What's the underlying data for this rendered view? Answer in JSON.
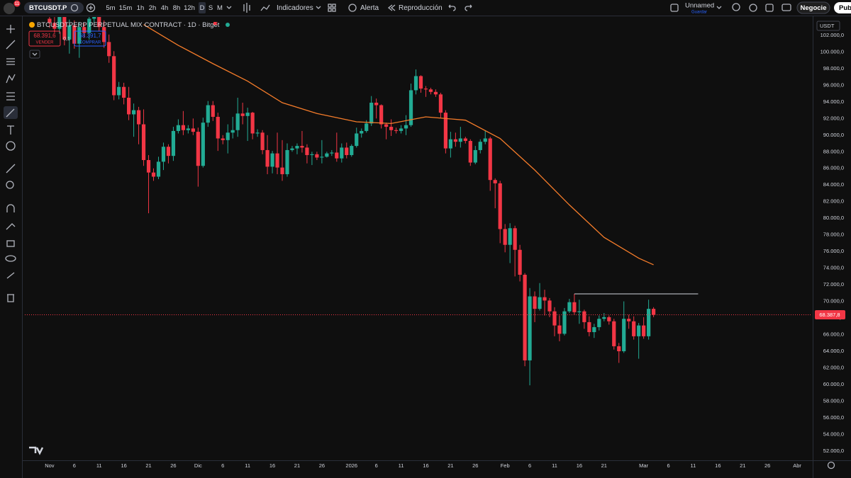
{
  "top_bar": {
    "badge": "11",
    "symbol": "BTCUSDT.P",
    "intervals": [
      "5m",
      "15m",
      "1h",
      "2h",
      "4h",
      "8h",
      "12h",
      "D",
      "S",
      "M"
    ],
    "indicators": "Indicadores",
    "alert": "Alerta",
    "replay": "Reproducción",
    "layout_name": "Unnamed",
    "save": "Guardar",
    "trade": "Negocie",
    "publish": "Publ"
  },
  "legend": {
    "sell_price": "68.391,6",
    "sell": "VENDER",
    "spread": "0,1",
    "buy_price": "68.391,7",
    "buy": "COMPRAR"
  },
  "chart_data": {
    "type": "candlestick",
    "title": "BTCUSDTPERP PERPETUAL MIX CONTRACT · 1D · Bitget",
    "currency": "USDT",
    "up_color": "#22ab94",
    "down_color": "#f23645",
    "xlim": [
      "2025-10-27",
      "2026-04-04"
    ],
    "xticks": [
      {
        "value": "2025-11-01",
        "label": "Nov"
      },
      {
        "value": "2025-11-06",
        "label": "6"
      },
      {
        "value": "2025-11-11",
        "label": "11"
      },
      {
        "value": "2025-11-16",
        "label": "16"
      },
      {
        "value": "2025-11-21",
        "label": "21"
      },
      {
        "value": "2025-11-26",
        "label": "26"
      },
      {
        "value": "2025-12-01",
        "label": "Dic"
      },
      {
        "value": "2025-12-06",
        "label": "6"
      },
      {
        "value": "2025-12-11",
        "label": "11"
      },
      {
        "value": "2025-12-16",
        "label": "16"
      },
      {
        "value": "2025-12-21",
        "label": "21"
      },
      {
        "value": "2025-12-26",
        "label": "26"
      },
      {
        "value": "2026-01-01",
        "label": "2026"
      },
      {
        "value": "2026-01-06",
        "label": "6"
      },
      {
        "value": "2026-01-11",
        "label": "11"
      },
      {
        "value": "2026-01-16",
        "label": "16"
      },
      {
        "value": "2026-01-21",
        "label": "21"
      },
      {
        "value": "2026-01-26",
        "label": "26"
      },
      {
        "value": "2026-02-01",
        "label": "Feb"
      },
      {
        "value": "2026-02-06",
        "label": "6"
      },
      {
        "value": "2026-02-11",
        "label": "11"
      },
      {
        "value": "2026-02-16",
        "label": "16"
      },
      {
        "value": "2026-02-21",
        "label": "21"
      },
      {
        "value": "2026-03-01",
        "label": "Mar"
      },
      {
        "value": "2026-03-06",
        "label": "6"
      },
      {
        "value": "2026-03-11",
        "label": "11"
      },
      {
        "value": "2026-03-16",
        "label": "16"
      },
      {
        "value": "2026-03-21",
        "label": "21"
      },
      {
        "value": "2026-03-26",
        "label": "26"
      },
      {
        "value": "2026-04-01",
        "label": "Abr"
      }
    ],
    "ylim": [
      50880,
      103700
    ],
    "yticks": [
      {
        "value": 52000,
        "label": "52.000,0"
      },
      {
        "value": 54000,
        "label": "54.000,0"
      },
      {
        "value": 56000,
        "label": "56.000,0"
      },
      {
        "value": 58000,
        "label": "58.000,0"
      },
      {
        "value": 60000,
        "label": "60.000,0"
      },
      {
        "value": 62000,
        "label": "62.000,0"
      },
      {
        "value": 64000,
        "label": "64.000,0"
      },
      {
        "value": 66000,
        "label": "66.000,0"
      },
      {
        "value": 68000,
        "label": "68.000,0"
      },
      {
        "value": 70000,
        "label": "70.000,0"
      },
      {
        "value": 72000,
        "label": "72.000,0"
      },
      {
        "value": 74000,
        "label": "74.000,0"
      },
      {
        "value": 76000,
        "label": "76.000,0"
      },
      {
        "value": 78000,
        "label": "78.000,0"
      },
      {
        "value": 80000,
        "label": "80.000,0"
      },
      {
        "value": 82000,
        "label": "82.000,0"
      },
      {
        "value": 84000,
        "label": "84.000,0"
      },
      {
        "value": 86000,
        "label": "86.000,0"
      },
      {
        "value": 88000,
        "label": "88.000,0"
      },
      {
        "value": 90000,
        "label": "90.000,0"
      },
      {
        "value": 92000,
        "label": "92.000,0"
      },
      {
        "value": 94000,
        "label": "94.000,0"
      },
      {
        "value": 96000,
        "label": "96.000,0"
      },
      {
        "value": 98000,
        "label": "98.000,0"
      },
      {
        "value": 100000,
        "label": "100.000,0"
      },
      {
        "value": 102000,
        "label": "102.000,0"
      }
    ],
    "grid": false,
    "x": [
      "2025-11-01",
      "2025-11-02",
      "2025-11-03",
      "2025-11-04",
      "2025-11-05",
      "2025-11-06",
      "2025-11-07",
      "2025-11-08",
      "2025-11-09",
      "2025-11-10",
      "2025-11-11",
      "2025-11-12",
      "2025-11-13",
      "2025-11-14",
      "2025-11-15",
      "2025-11-16",
      "2025-11-17",
      "2025-11-18",
      "2025-11-19",
      "2025-11-20",
      "2025-11-21",
      "2025-11-22",
      "2025-11-23",
      "2025-11-24",
      "2025-11-25",
      "2025-11-26",
      "2025-11-27",
      "2025-11-28",
      "2025-11-29",
      "2025-11-30",
      "2025-12-01",
      "2025-12-02",
      "2025-12-03",
      "2025-12-04",
      "2025-12-05",
      "2025-12-06",
      "2025-12-07",
      "2025-12-08",
      "2025-12-09",
      "2025-12-10",
      "2025-12-11",
      "2025-12-12",
      "2025-12-13",
      "2025-12-14",
      "2025-12-15",
      "2025-12-16",
      "2025-12-17",
      "2025-12-18",
      "2025-12-19",
      "2025-12-20",
      "2025-12-21",
      "2025-12-22",
      "2025-12-23",
      "2025-12-24",
      "2025-12-25",
      "2025-12-26",
      "2025-12-27",
      "2025-12-28",
      "2025-12-29",
      "2025-12-30",
      "2025-12-31",
      "2026-01-01",
      "2026-01-02",
      "2026-01-03",
      "2026-01-04",
      "2026-01-05",
      "2026-01-06",
      "2026-01-07",
      "2026-01-08",
      "2026-01-09",
      "2026-01-10",
      "2026-01-11",
      "2026-01-12",
      "2026-01-13",
      "2026-01-14",
      "2026-01-15",
      "2026-01-16",
      "2026-01-17",
      "2026-01-18",
      "2026-01-19",
      "2026-01-20",
      "2026-01-21",
      "2026-01-22",
      "2026-01-23",
      "2026-01-24",
      "2026-01-25",
      "2026-01-26",
      "2026-01-27",
      "2026-01-28",
      "2026-01-29",
      "2026-01-30",
      "2026-01-31",
      "2026-02-01",
      "2026-02-02",
      "2026-02-03",
      "2026-02-04",
      "2026-02-05",
      "2026-02-06",
      "2026-02-07",
      "2026-02-08",
      "2026-02-09",
      "2026-02-10",
      "2026-02-11",
      "2026-02-12",
      "2026-02-13",
      "2026-02-14",
      "2026-02-15",
      "2026-02-16",
      "2026-02-17",
      "2026-02-18",
      "2026-02-19",
      "2026-02-20",
      "2026-02-21",
      "2026-02-22",
      "2026-02-23",
      "2026-02-24",
      "2026-02-25",
      "2026-02-26",
      "2026-02-27",
      "2026-02-28",
      "2026-03-01",
      "2026-03-02",
      "2026-03-03"
    ],
    "ohlc": [
      [
        104000,
        104800,
        102900,
        103500
      ],
      [
        103500,
        104200,
        102300,
        102800
      ],
      [
        102800,
        105200,
        102200,
        104500
      ],
      [
        104500,
        105000,
        100800,
        101500
      ],
      [
        101500,
        103900,
        99800,
        103200
      ],
      [
        103200,
        103800,
        100400,
        101000
      ],
      [
        101000,
        103600,
        99300,
        103000
      ],
      [
        103000,
        103500,
        101700,
        102300
      ],
      [
        102300,
        104600,
        101500,
        104000
      ],
      [
        104000,
        106000,
        103500,
        105500
      ],
      [
        105500,
        106200,
        102500,
        103000
      ],
      [
        103000,
        103800,
        100500,
        101200
      ],
      [
        101200,
        102100,
        98700,
        99500
      ],
      [
        99500,
        100100,
        94200,
        94800
      ],
      [
        94800,
        96400,
        94300,
        95800
      ],
      [
        95800,
        96300,
        93700,
        94500
      ],
      [
        94500,
        95800,
        91800,
        92500
      ],
      [
        92500,
        93800,
        89800,
        93000
      ],
      [
        93000,
        93400,
        88900,
        91300
      ],
      [
        91300,
        93100,
        86300,
        87000
      ],
      [
        87000,
        87600,
        80600,
        85500
      ],
      [
        85500,
        86000,
        84500,
        85000
      ],
      [
        85000,
        87400,
        84700,
        86800
      ],
      [
        86800,
        89100,
        85800,
        88600
      ],
      [
        88600,
        88900,
        86600,
        87500
      ],
      [
        87500,
        91000,
        86900,
        90500
      ],
      [
        90500,
        91900,
        90200,
        91200
      ],
      [
        91200,
        92900,
        90000,
        90600
      ],
      [
        90600,
        91200,
        90200,
        90800
      ],
      [
        90800,
        92000,
        90000,
        90400
      ],
      [
        90400,
        90900,
        83800,
        86300
      ],
      [
        86300,
        92100,
        86100,
        91500
      ],
      [
        91500,
        94100,
        91000,
        93600
      ],
      [
        93600,
        94100,
        91700,
        92200
      ],
      [
        92200,
        92700,
        88100,
        89600
      ],
      [
        89600,
        90000,
        88900,
        89400
      ],
      [
        89400,
        91300,
        87800,
        90300
      ],
      [
        90300,
        92200,
        89600,
        90600
      ],
      [
        90600,
        94500,
        89800,
        92600
      ],
      [
        92600,
        93900,
        91300,
        92300
      ],
      [
        92300,
        93300,
        89300,
        92700
      ],
      [
        92700,
        92800,
        89500,
        90200
      ],
      [
        90200,
        90700,
        89800,
        90300
      ],
      [
        90300,
        90600,
        87700,
        88200
      ],
      [
        88200,
        90000,
        85300,
        86200
      ],
      [
        86200,
        88100,
        85400,
        87800
      ],
      [
        87800,
        90300,
        85300,
        86100
      ],
      [
        86100,
        89400,
        84500,
        85300
      ],
      [
        85300,
        89000,
        85000,
        88200
      ],
      [
        88200,
        88700,
        88000,
        88400
      ],
      [
        88400,
        89000,
        87700,
        88700
      ],
      [
        88700,
        90500,
        87900,
        88500
      ],
      [
        88500,
        88900,
        86600,
        87600
      ],
      [
        87600,
        88000,
        86400,
        87700
      ],
      [
        87700,
        88000,
        87000,
        87300
      ],
      [
        87300,
        89400,
        86600,
        87400
      ],
      [
        87400,
        88000,
        87300,
        87800
      ],
      [
        87800,
        88200,
        87500,
        87900
      ],
      [
        87900,
        90300,
        86800,
        87200
      ],
      [
        87200,
        89000,
        86700,
        88500
      ],
      [
        88500,
        89100,
        87200,
        87600
      ],
      [
        87600,
        88900,
        87400,
        88700
      ],
      [
        88700,
        90900,
        88500,
        90200
      ],
      [
        90200,
        90800,
        89700,
        90500
      ],
      [
        90500,
        91800,
        90300,
        91400
      ],
      [
        91400,
        94700,
        91100,
        93900
      ],
      [
        93900,
        94400,
        92000,
        93600
      ],
      [
        93600,
        93700,
        90800,
        91300
      ],
      [
        91300,
        91500,
        89500,
        91000
      ],
      [
        91000,
        91900,
        89900,
        90600
      ],
      [
        90600,
        90900,
        90200,
        90500
      ],
      [
        90500,
        91200,
        90200,
        90800
      ],
      [
        90800,
        92400,
        90000,
        91200
      ],
      [
        91200,
        96200,
        91000,
        95400
      ],
      [
        95400,
        97900,
        94900,
        97100
      ],
      [
        97100,
        97200,
        95100,
        95600
      ],
      [
        95600,
        95900,
        94600,
        95500
      ],
      [
        95500,
        95700,
        94900,
        95200
      ],
      [
        95200,
        95500,
        94600,
        94900
      ],
      [
        94900,
        95100,
        92100,
        92700
      ],
      [
        92700,
        93000,
        87800,
        88400
      ],
      [
        88400,
        90400,
        87300,
        89500
      ],
      [
        89500,
        90300,
        88600,
        89200
      ],
      [
        89200,
        91000,
        88500,
        89600
      ],
      [
        89600,
        89800,
        89000,
        89300
      ],
      [
        89300,
        89500,
        86300,
        86700
      ],
      [
        86700,
        88700,
        86500,
        88200
      ],
      [
        88200,
        89500,
        87800,
        89200
      ],
      [
        89200,
        90500,
        88900,
        89600
      ],
      [
        89600,
        89800,
        83300,
        84600
      ],
      [
        84600,
        84800,
        81200,
        84200
      ],
      [
        84200,
        84500,
        77000,
        78700
      ],
      [
        78700,
        79300,
        75900,
        76800
      ],
      [
        76800,
        79400,
        74600,
        78800
      ],
      [
        78800,
        79100,
        73000,
        76200
      ],
      [
        76200,
        76800,
        72400,
        73200
      ],
      [
        73200,
        73400,
        62200,
        62900
      ],
      [
        62900,
        71600,
        59900,
        70600
      ],
      [
        70600,
        71200,
        67500,
        69100
      ],
      [
        69100,
        72200,
        68900,
        70500
      ],
      [
        70500,
        71400,
        68300,
        70100
      ],
      [
        70100,
        70400,
        68100,
        68800
      ],
      [
        68800,
        69300,
        65800,
        67100
      ],
      [
        67100,
        68300,
        65200,
        66100
      ],
      [
        66100,
        69200,
        65900,
        68800
      ],
      [
        68800,
        70300,
        68600,
        69900
      ],
      [
        69900,
        70900,
        68400,
        68700
      ],
      [
        68700,
        70200,
        67300,
        68800
      ],
      [
        68800,
        69000,
        66700,
        67500
      ],
      [
        67500,
        68200,
        65800,
        66300
      ],
      [
        66300,
        67300,
        65600,
        66900
      ],
      [
        66900,
        68300,
        66500,
        67900
      ],
      [
        67900,
        68600,
        67600,
        68100
      ],
      [
        68100,
        68300,
        67200,
        67600
      ],
      [
        67600,
        67900,
        64200,
        64600
      ],
      [
        64600,
        65000,
        62600,
        64000
      ],
      [
        64000,
        70000,
        63800,
        67900
      ],
      [
        67900,
        68400,
        66700,
        67600
      ],
      [
        67600,
        68200,
        65400,
        65800
      ],
      [
        65800,
        67400,
        63100,
        67100
      ],
      [
        67100,
        68100,
        65500,
        65800
      ],
      [
        65800,
        70200,
        65400,
        69100
      ],
      [
        69100,
        69300,
        68100,
        68387.8
      ]
    ],
    "ma": {
      "color": "#f57c2a",
      "x": [
        "2025-11-20",
        "2025-11-27",
        "2025-12-04",
        "2025-12-11",
        "2025-12-18",
        "2025-12-25",
        "2026-01-02",
        "2026-01-09",
        "2026-01-16",
        "2026-01-24",
        "2026-01-31",
        "2026-02-07",
        "2026-02-14",
        "2026-02-21",
        "2026-02-28",
        "2026-03-03"
      ],
      "values": [
        103300,
        100800,
        98600,
        96500,
        93900,
        92600,
        91600,
        91400,
        92200,
        91800,
        89600,
        85800,
        81600,
        77700,
        75200,
        74400
      ]
    },
    "hline": {
      "color": "#d1d4dc",
      "y": 70900,
      "x": [
        "2026-02-15",
        "2026-03-12"
      ]
    },
    "last_price": {
      "value": 68387.8,
      "label": "68.387,8"
    }
  }
}
